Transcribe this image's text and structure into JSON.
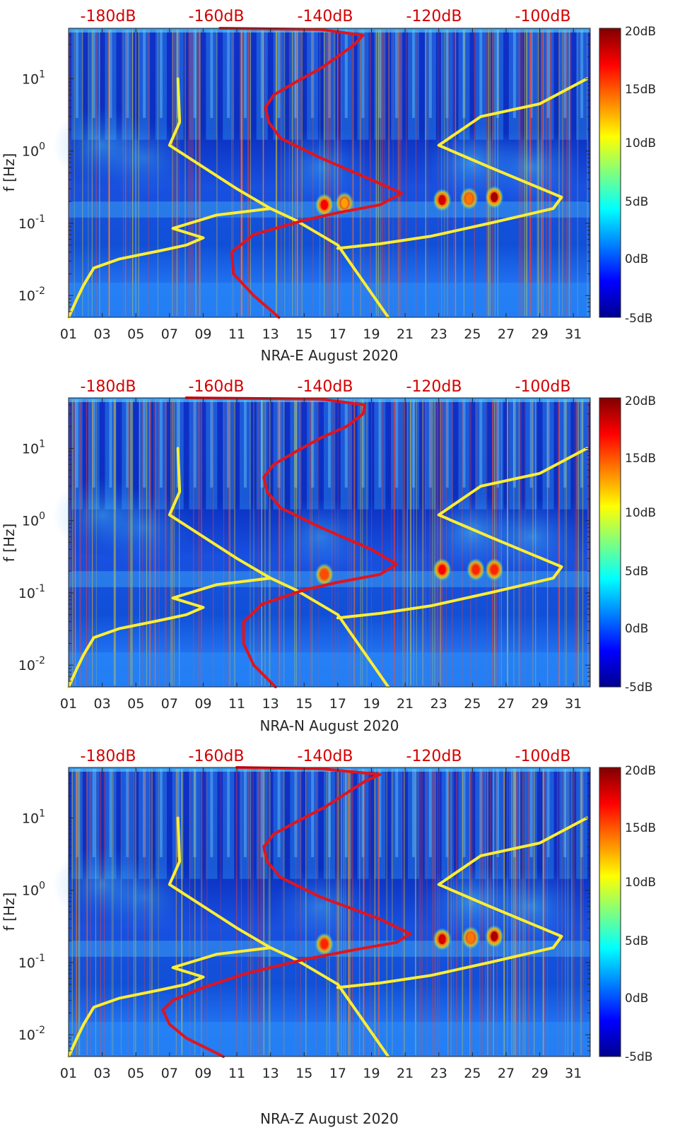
{
  "chart_data": [
    {
      "type": "heatmap",
      "xlabel": "NRA-E August 2020",
      "ylabel": "f [Hz]",
      "x_ticks": [
        "01",
        "03",
        "05",
        "07",
        "09",
        "11",
        "13",
        "15",
        "17",
        "19",
        "21",
        "23",
        "25",
        "27",
        "29",
        "31"
      ],
      "x_range_days": [
        1,
        32
      ],
      "y_scale": "log",
      "y_range_hz": [
        0.005,
        50
      ],
      "y_ticks": [
        {
          "base": "10",
          "exp": "1",
          "value": 10
        },
        {
          "base": "10",
          "exp": "0",
          "value": 1
        },
        {
          "base": "10",
          "exp": "-1",
          "value": 0.1
        },
        {
          "base": "10",
          "exp": "-2",
          "value": 0.01
        }
      ],
      "top_axis_labels": [
        "-180dB",
        "-160dB",
        "-140dB",
        "-120dB",
        "-100dB"
      ],
      "top_axis_range_db": [
        -190,
        -92
      ],
      "colorbar": {
        "labels": [
          "20dB",
          "15dB",
          "10dB",
          "5dB",
          "0dB",
          "-5dB"
        ],
        "range_db": [
          -5,
          20
        ],
        "colormap": "jet"
      },
      "hot_spots": [
        {
          "day": 23.2,
          "f": 0.21,
          "level_db": 18
        },
        {
          "day": 24.8,
          "f": 0.22,
          "level_db": 14
        },
        {
          "day": 26.3,
          "f": 0.23,
          "level_db": 19
        },
        {
          "day": 16.2,
          "f": 0.18,
          "level_db": 17
        },
        {
          "day": 17.4,
          "f": 0.19,
          "level_db": 13
        }
      ],
      "series": [
        {
          "color": "#ffee33",
          "points": [
            [
              1,
              0.005
            ],
            [
              1.5,
              0.009
            ],
            [
              1.9,
              0.014
            ],
            [
              2.5,
              0.024
            ],
            [
              4,
              0.032
            ],
            [
              6.5,
              0.042
            ],
            [
              8,
              0.05
            ],
            [
              9,
              0.063
            ],
            [
              7.2,
              0.085
            ],
            [
              9.8,
              0.13
            ],
            [
              13,
              0.16
            ],
            [
              11,
              0.3
            ],
            [
              7,
              1.2
            ],
            [
              7.6,
              2.5
            ],
            [
              7.5,
              10
            ],
            [
              7.6,
              2.5
            ],
            [
              7,
              1.2
            ],
            [
              11,
              0.3
            ],
            [
              13,
              0.16
            ],
            [
              14.5,
              0.11
            ],
            [
              17,
              0.05
            ],
            [
              20,
              0.005
            ]
          ]
        },
        {
          "color": "#ffee33",
          "points": [
            [
              17,
              0.045
            ],
            [
              19.5,
              0.052
            ],
            [
              22.5,
              0.066
            ],
            [
              26,
              0.1
            ],
            [
              29.8,
              0.16
            ],
            [
              30.3,
              0.23
            ],
            [
              26,
              0.6
            ],
            [
              23,
              1.2
            ],
            [
              25.5,
              3
            ],
            [
              29,
              4.5
            ],
            [
              31.8,
              10
            ]
          ]
        },
        {
          "color": "#e0141e",
          "points": [
            [
              13.5,
              0.005
            ],
            [
              12,
              0.01
            ],
            [
              10.8,
              0.02
            ],
            [
              10.7,
              0.04
            ],
            [
              12,
              0.07
            ],
            [
              15,
              0.11
            ],
            [
              17,
              0.14
            ],
            [
              19.5,
              0.18
            ],
            [
              20.8,
              0.26
            ],
            [
              19,
              0.4
            ],
            [
              16,
              0.8
            ],
            [
              13.6,
              1.5
            ],
            [
              12.9,
              2.5
            ],
            [
              12.7,
              4
            ],
            [
              13.2,
              6
            ],
            [
              14.5,
              9
            ],
            [
              16,
              14
            ],
            [
              17.2,
              22
            ],
            [
              18,
              30
            ],
            [
              18.5,
              40
            ],
            [
              16,
              48
            ],
            [
              10,
              50
            ]
          ]
        }
      ]
    },
    {
      "type": "heatmap",
      "xlabel": "NRA-N August 2020",
      "ylabel": "f [Hz]",
      "x_ticks": [
        "01",
        "03",
        "05",
        "07",
        "09",
        "11",
        "13",
        "15",
        "17",
        "19",
        "21",
        "23",
        "25",
        "27",
        "29",
        "31"
      ],
      "x_range_days": [
        1,
        32
      ],
      "y_scale": "log",
      "y_range_hz": [
        0.005,
        50
      ],
      "y_ticks": [
        {
          "base": "10",
          "exp": "1",
          "value": 10
        },
        {
          "base": "10",
          "exp": "0",
          "value": 1
        },
        {
          "base": "10",
          "exp": "-1",
          "value": 0.1
        },
        {
          "base": "10",
          "exp": "-2",
          "value": 0.01
        }
      ],
      "top_axis_labels": [
        "-180dB",
        "-160dB",
        "-140dB",
        "-120dB",
        "-100dB"
      ],
      "top_axis_range_db": [
        -190,
        -92
      ],
      "colorbar": {
        "labels": [
          "20dB",
          "15dB",
          "10dB",
          "5dB",
          "0dB",
          "-5dB"
        ],
        "range_db": [
          -5,
          20
        ],
        "colormap": "jet"
      },
      "hot_spots": [
        {
          "day": 23.2,
          "f": 0.21,
          "level_db": 17
        },
        {
          "day": 25.2,
          "f": 0.21,
          "level_db": 16
        },
        {
          "day": 26.3,
          "f": 0.21,
          "level_db": 16
        },
        {
          "day": 16.2,
          "f": 0.18,
          "level_db": 15
        }
      ],
      "series": [
        {
          "color": "#ffee33",
          "points": [
            [
              1,
              0.005
            ],
            [
              1.5,
              0.009
            ],
            [
              1.9,
              0.014
            ],
            [
              2.5,
              0.024
            ],
            [
              4,
              0.032
            ],
            [
              6.5,
              0.042
            ],
            [
              8,
              0.05
            ],
            [
              9,
              0.063
            ],
            [
              7.2,
              0.085
            ],
            [
              9.8,
              0.13
            ],
            [
              13,
              0.16
            ],
            [
              11,
              0.3
            ],
            [
              7,
              1.2
            ],
            [
              7.6,
              2.5
            ],
            [
              7.5,
              10
            ],
            [
              7.6,
              2.5
            ],
            [
              7,
              1.2
            ],
            [
              11,
              0.3
            ],
            [
              13,
              0.16
            ],
            [
              14.5,
              0.11
            ],
            [
              17,
              0.05
            ],
            [
              20,
              0.005
            ]
          ]
        },
        {
          "color": "#ffee33",
          "points": [
            [
              17,
              0.045
            ],
            [
              19.5,
              0.052
            ],
            [
              22.5,
              0.066
            ],
            [
              26,
              0.1
            ],
            [
              29.8,
              0.16
            ],
            [
              30.3,
              0.23
            ],
            [
              26,
              0.6
            ],
            [
              23,
              1.2
            ],
            [
              25.5,
              3
            ],
            [
              29,
              4.5
            ],
            [
              31.8,
              10
            ]
          ]
        },
        {
          "color": "#e0141e",
          "points": [
            [
              13.3,
              0.005
            ],
            [
              12,
              0.01
            ],
            [
              11.4,
              0.02
            ],
            [
              11.4,
              0.04
            ],
            [
              12.5,
              0.07
            ],
            [
              15,
              0.11
            ],
            [
              17,
              0.14
            ],
            [
              19.5,
              0.18
            ],
            [
              20.5,
              0.25
            ],
            [
              19,
              0.4
            ],
            [
              16,
              0.8
            ],
            [
              13.6,
              1.5
            ],
            [
              12.8,
              2.5
            ],
            [
              12.6,
              4
            ],
            [
              13.2,
              6
            ],
            [
              14.5,
              9
            ],
            [
              16,
              14
            ],
            [
              17.5,
              20
            ],
            [
              18.5,
              30
            ],
            [
              18.6,
              40
            ],
            [
              16,
              48
            ],
            [
              8,
              50
            ]
          ]
        }
      ]
    },
    {
      "type": "heatmap",
      "xlabel": "NRA-Z August 2020",
      "ylabel": "f [Hz]",
      "x_ticks": [
        "01",
        "03",
        "05",
        "07",
        "09",
        "11",
        "13",
        "15",
        "17",
        "19",
        "21",
        "23",
        "25",
        "27",
        "29",
        "31"
      ],
      "x_range_days": [
        1,
        32
      ],
      "y_scale": "log",
      "y_range_hz": [
        0.005,
        50
      ],
      "y_ticks": [
        {
          "base": "10",
          "exp": "1",
          "value": 10
        },
        {
          "base": "10",
          "exp": "0",
          "value": 1
        },
        {
          "base": "10",
          "exp": "-1",
          "value": 0.1
        },
        {
          "base": "10",
          "exp": "-2",
          "value": 0.01
        }
      ],
      "top_axis_labels": [
        "-180dB",
        "-160dB",
        "-140dB",
        "-120dB",
        "-100dB"
      ],
      "top_axis_range_db": [
        -190,
        -92
      ],
      "colorbar": {
        "labels": [
          "20dB",
          "15dB",
          "10dB",
          "5dB",
          "0dB",
          "-5dB"
        ],
        "range_db": [
          -5,
          20
        ],
        "colormap": "jet"
      },
      "hot_spots": [
        {
          "day": 23.2,
          "f": 0.21,
          "level_db": 18
        },
        {
          "day": 24.9,
          "f": 0.22,
          "level_db": 14
        },
        {
          "day": 26.3,
          "f": 0.23,
          "level_db": 19
        },
        {
          "day": 16.2,
          "f": 0.18,
          "level_db": 16
        }
      ],
      "series": [
        {
          "color": "#ffee33",
          "points": [
            [
              1,
              0.005
            ],
            [
              1.5,
              0.009
            ],
            [
              1.9,
              0.014
            ],
            [
              2.5,
              0.024
            ],
            [
              4,
              0.032
            ],
            [
              6.5,
              0.042
            ],
            [
              8,
              0.05
            ],
            [
              9,
              0.063
            ],
            [
              7.2,
              0.085
            ],
            [
              9.8,
              0.13
            ],
            [
              13,
              0.16
            ],
            [
              11,
              0.3
            ],
            [
              7,
              1.2
            ],
            [
              7.6,
              2.5
            ],
            [
              7.5,
              10
            ],
            [
              7.6,
              2.5
            ],
            [
              7,
              1.2
            ],
            [
              11,
              0.3
            ],
            [
              13,
              0.16
            ],
            [
              14.5,
              0.11
            ],
            [
              17,
              0.05
            ],
            [
              20,
              0.005
            ]
          ]
        },
        {
          "color": "#ffee33",
          "points": [
            [
              17,
              0.045
            ],
            [
              19.5,
              0.052
            ],
            [
              22.5,
              0.066
            ],
            [
              26,
              0.1
            ],
            [
              29.8,
              0.16
            ],
            [
              30.3,
              0.23
            ],
            [
              26,
              0.6
            ],
            [
              23,
              1.2
            ],
            [
              25.5,
              3
            ],
            [
              29,
              4.5
            ],
            [
              31.8,
              10
            ]
          ]
        },
        {
          "color": "#e0141e",
          "points": [
            [
              10.2,
              0.005
            ],
            [
              8,
              0.009
            ],
            [
              7,
              0.014
            ],
            [
              6.6,
              0.022
            ],
            [
              7.2,
              0.03
            ],
            [
              9,
              0.045
            ],
            [
              11.5,
              0.07
            ],
            [
              15,
              0.11
            ],
            [
              18,
              0.15
            ],
            [
              20.5,
              0.19
            ],
            [
              21.3,
              0.25
            ],
            [
              19.5,
              0.4
            ],
            [
              16,
              0.8
            ],
            [
              13.6,
              1.5
            ],
            [
              12.8,
              2.5
            ],
            [
              12.6,
              4
            ],
            [
              13.2,
              6
            ],
            [
              14.6,
              9
            ],
            [
              16.2,
              14
            ],
            [
              17.5,
              22
            ],
            [
              18.6,
              32
            ],
            [
              19.5,
              40
            ],
            [
              16,
              48
            ],
            [
              11,
              50
            ]
          ]
        }
      ]
    }
  ]
}
